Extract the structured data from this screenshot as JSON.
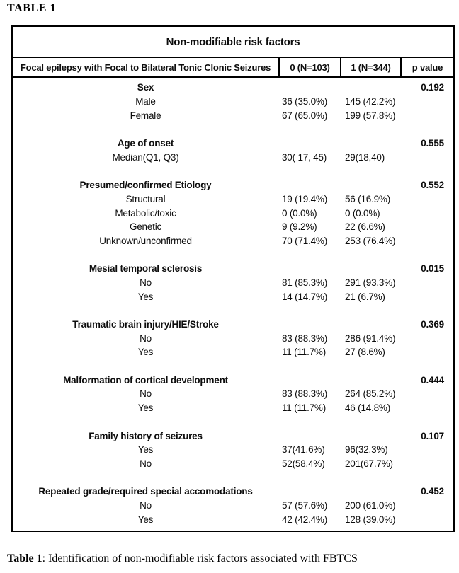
{
  "page": {
    "title": "TABLE 1",
    "caption": {
      "label": "Table 1",
      "text": ": Identification of non-modifiable risk factors associated with FBTCS"
    }
  },
  "table": {
    "title": "Non-modifiable risk factors",
    "header": {
      "label": "Focal epilepsy with Focal to Bilateral Tonic Clonic Seizures",
      "col0": "0 (N=103)",
      "col1": "1 (N=344)",
      "p": "p value"
    },
    "groups": [
      {
        "label": "Sex",
        "p": "0.192",
        "rows": [
          {
            "label": "Male",
            "v0": "36 (35.0%)",
            "v1": "145 (42.2%)"
          },
          {
            "label": "Female",
            "v0": "67 (65.0%)",
            "v1": "199 (57.8%)"
          }
        ]
      },
      {
        "label": "Age of onset",
        "p": "0.555",
        "rows": [
          {
            "label": "Median(Q1, Q3)",
            "v0": "30( 17, 45)",
            "v1": "29(18,40)"
          }
        ]
      },
      {
        "label": "Presumed/confirmed Etiology",
        "p": "0.552",
        "rows": [
          {
            "label": "Structural",
            "v0": "19 (19.4%)",
            "v1": "56 (16.9%)"
          },
          {
            "label": "Metabolic/toxic",
            "v0": "0 (0.0%)",
            "v1": "0 (0.0%)"
          },
          {
            "label": "Genetic",
            "v0": "9 (9.2%)",
            "v1": "22 (6.6%)"
          },
          {
            "label": "Unknown/unconfirmed",
            "v0": "70 (71.4%)",
            "v1": "253 (76.4%)"
          }
        ]
      },
      {
        "label": "Mesial temporal sclerosis",
        "p": "0.015",
        "rows": [
          {
            "label": "No",
            "v0": "81 (85.3%)",
            "v1": "291 (93.3%)"
          },
          {
            "label": "Yes",
            "v0": "14 (14.7%)",
            "v1": "21 (6.7%)"
          }
        ]
      },
      {
        "label": "Traumatic brain injury/HIE/Stroke",
        "p": "0.369",
        "rows": [
          {
            "label": "No",
            "v0": "83 (88.3%)",
            "v1": "286 (91.4%)"
          },
          {
            "label": "Yes",
            "v0": "11 (11.7%)",
            "v1": "27 (8.6%)"
          }
        ]
      },
      {
        "label": "Malformation of cortical development",
        "p": "0.444",
        "rows": [
          {
            "label": "No",
            "v0": "83 (88.3%)",
            "v1": "264 (85.2%)"
          },
          {
            "label": "Yes",
            "v0": "11 (11.7%)",
            "v1": "46 (14.8%)"
          }
        ]
      },
      {
        "label": "Family history of seizures",
        "p": "0.107",
        "rows": [
          {
            "label": "Yes",
            "v0": "37(41.6%)",
            "v1": "96(32.3%)"
          },
          {
            "label": "No",
            "v0": "52(58.4%)",
            "v1": "201(67.7%)"
          }
        ]
      },
      {
        "label": "Repeated grade/required special accomodations",
        "p": "0.452",
        "rows": [
          {
            "label": "No",
            "v0": "57 (57.6%)",
            "v1": "200 (61.0%)"
          },
          {
            "label": "Yes",
            "v0": "42 (42.4%)",
            "v1": "128 (39.0%)"
          }
        ]
      }
    ]
  }
}
